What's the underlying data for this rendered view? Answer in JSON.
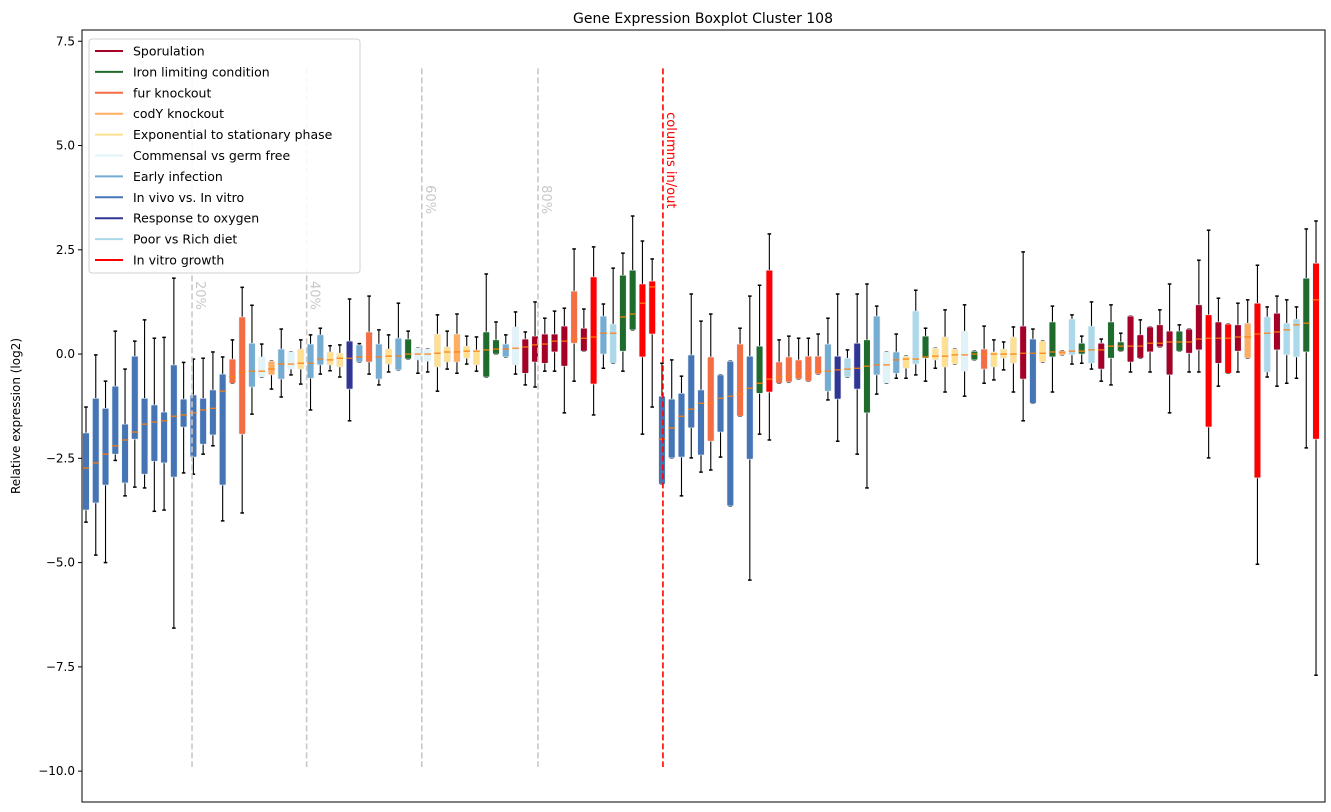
{
  "chart_data": {
    "type": "boxplot",
    "title": "Gene Expression Boxplot Cluster 108",
    "xlabel": "",
    "ylabel": "Relative expression (log2)",
    "ylim": [
      -10.74,
      7.77
    ],
    "xlim": [
      0.59,
      127.92
    ],
    "grid": false,
    "yticks": [
      {
        "value": 7.5,
        "label": "7.5"
      },
      {
        "value": 5.0,
        "label": "5.0"
      },
      {
        "value": 2.5,
        "label": "2.5"
      },
      {
        "value": 0.0,
        "label": "0.0"
      },
      {
        "value": -2.5,
        "label": "−2.5"
      },
      {
        "value": -5.0,
        "label": "−5.0"
      },
      {
        "value": -7.5,
        "label": "−7.5"
      },
      {
        "value": -10.0,
        "label": "−10.0"
      }
    ],
    "legend_position": "top-left",
    "median_color": "#ff7f0e",
    "categories": {
      "S": {
        "name": "Sporulation",
        "color": "#a50026"
      },
      "I": {
        "name": "Iron limiting condition",
        "color": "#1f6b2c"
      },
      "F": {
        "name": "fur knockout",
        "color": "#f46d43"
      },
      "C": {
        "name": "codY knockout",
        "color": "#fdae61"
      },
      "E": {
        "name": "Exponential to stationary phase",
        "color": "#fee090"
      },
      "M": {
        "name": "Commensal vs germ free",
        "color": "#e0f3f8"
      },
      "A": {
        "name": "Early infection",
        "color": "#74add1"
      },
      "V": {
        "name": "In vivo vs. In vitro",
        "color": "#4575b4"
      },
      "O": {
        "name": "Response to oxygen",
        "color": "#313695"
      },
      "P": {
        "name": "Poor vs Rich diet",
        "color": "#abd9e9"
      },
      "R": {
        "name": "In vitro growth",
        "color": "#ff0000"
      }
    },
    "legend_order": [
      "S",
      "I",
      "F",
      "C",
      "E",
      "M",
      "A",
      "V",
      "O",
      "P",
      "R"
    ],
    "box_fields": [
      "whisker_low",
      "q1",
      "median",
      "q3",
      "whisker_high",
      "category"
    ],
    "boxes": [
      [
        -4.03,
        -3.74,
        -2.73,
        -1.89,
        -1.27,
        "V"
      ],
      [
        -4.82,
        -3.57,
        -2.61,
        -1.06,
        -0.02,
        "V"
      ],
      [
        -5.0,
        -3.14,
        -2.4,
        -1.3,
        -0.65,
        "V"
      ],
      [
        -2.55,
        -2.4,
        -2.2,
        -0.77,
        0.55,
        "V"
      ],
      [
        -3.4,
        -3.09,
        -2.06,
        -1.68,
        -0.36,
        "V"
      ],
      [
        -3.19,
        -2.04,
        -1.87,
        -0.05,
        0.31,
        "V"
      ],
      [
        -3.21,
        -2.88,
        -1.68,
        -1.06,
        0.82,
        "V"
      ],
      [
        -3.77,
        -2.57,
        -1.63,
        -1.22,
        0.38,
        "V"
      ],
      [
        -3.74,
        -2.61,
        -1.6,
        -1.39,
        0.4,
        "V"
      ],
      [
        -6.57,
        -2.95,
        -1.49,
        -0.26,
        1.82,
        "V"
      ],
      [
        -2.85,
        -1.75,
        -1.46,
        -1.08,
        -0.2,
        "V"
      ],
      [
        -2.88,
        -2.47,
        -1.41,
        -0.98,
        -0.12,
        "V"
      ],
      [
        -2.4,
        -2.16,
        -1.34,
        -1.06,
        -0.1,
        "V"
      ],
      [
        -2.2,
        -1.94,
        -1.3,
        -0.86,
        0.05,
        "V"
      ],
      [
        -4.0,
        -3.14,
        -0.89,
        -0.48,
        -0.07,
        "V"
      ],
      [
        -0.7,
        -0.7,
        -0.55,
        -0.12,
        0.34,
        "F"
      ],
      [
        -3.81,
        -1.92,
        -0.43,
        0.89,
        1.6,
        "F"
      ],
      [
        -1.44,
        -0.79,
        -0.41,
        0.26,
        1.17,
        "A"
      ],
      [
        -0.55,
        -0.55,
        -0.41,
        -0.07,
        0.24,
        "M"
      ],
      [
        -0.84,
        -0.5,
        -0.36,
        -0.17,
        -0.17,
        "C"
      ],
      [
        -1.03,
        -0.6,
        -0.24,
        0.12,
        0.6,
        "A"
      ],
      [
        -0.5,
        -0.36,
        -0.24,
        0.05,
        0.05,
        "M"
      ],
      [
        -0.72,
        -0.36,
        -0.22,
        0.12,
        0.34,
        "E"
      ],
      [
        -1.34,
        -0.58,
        -0.22,
        0.24,
        0.46,
        "A"
      ],
      [
        -0.48,
        -0.26,
        -0.12,
        0.46,
        0.62,
        "A"
      ],
      [
        -0.4,
        -0.26,
        -0.14,
        0.05,
        0.2,
        "E"
      ],
      [
        -0.55,
        -0.31,
        -0.1,
        0.02,
        0.22,
        "E"
      ],
      [
        -1.6,
        -0.84,
        -0.1,
        0.31,
        1.32,
        "O"
      ],
      [
        -0.19,
        -0.19,
        -0.07,
        0.22,
        0.25,
        "A"
      ],
      [
        -0.48,
        -0.19,
        -0.07,
        0.53,
        1.39,
        "F"
      ],
      [
        -0.74,
        -0.6,
        -0.07,
        0.24,
        0.58,
        "A"
      ],
      [
        -0.43,
        -0.24,
        -0.05,
        0.12,
        0.46,
        "E"
      ],
      [
        -0.38,
        -0.38,
        -0.05,
        0.38,
        1.22,
        "A"
      ],
      [
        -0.12,
        -0.12,
        0.0,
        0.36,
        0.55,
        "I"
      ],
      [
        -0.46,
        -0.14,
        0.0,
        0.14,
        0.14,
        "M"
      ],
      [
        -0.43,
        -0.17,
        0.0,
        0.12,
        0.12,
        "M"
      ],
      [
        -0.89,
        -0.31,
        0.02,
        0.48,
        0.94,
        "E"
      ],
      [
        -0.36,
        -0.19,
        0.05,
        0.17,
        0.55,
        "E"
      ],
      [
        -0.46,
        -0.19,
        0.05,
        0.48,
        0.96,
        "C"
      ],
      [
        -0.24,
        -0.1,
        0.07,
        0.19,
        0.43,
        "E"
      ],
      [
        -0.41,
        -0.26,
        0.07,
        0.1,
        0.41,
        "E"
      ],
      [
        -0.55,
        -0.55,
        0.1,
        0.53,
        1.92,
        "I"
      ],
      [
        0.0,
        0.0,
        0.12,
        0.34,
        0.77,
        "I"
      ],
      [
        -0.07,
        -0.07,
        0.12,
        0.24,
        0.46,
        "A"
      ],
      [
        -0.48,
        -0.26,
        0.14,
        0.65,
        1.01,
        "M"
      ],
      [
        -0.74,
        -0.46,
        0.17,
        0.36,
        0.53,
        "S"
      ],
      [
        -0.79,
        -0.19,
        0.22,
        0.43,
        1.25,
        "S"
      ],
      [
        -0.41,
        -0.22,
        0.24,
        0.48,
        0.86,
        "S"
      ],
      [
        -0.41,
        0.05,
        0.31,
        0.48,
        1.03,
        "S"
      ],
      [
        -1.41,
        -0.29,
        0.31,
        0.67,
        1.1,
        "S"
      ],
      [
        -0.65,
        0.26,
        0.36,
        1.51,
        2.52,
        "F"
      ],
      [
        0.07,
        0.07,
        0.38,
        0.62,
        1.08,
        "S"
      ],
      [
        -1.46,
        -0.72,
        0.41,
        1.85,
        2.57,
        "R"
      ],
      [
        -0.34,
        0.0,
        0.5,
        0.91,
        1.2,
        "A"
      ],
      [
        -0.22,
        -0.22,
        0.5,
        0.72,
        2.06,
        "P"
      ],
      [
        -0.41,
        0.07,
        0.89,
        1.89,
        2.42,
        "I"
      ],
      [
        0.58,
        0.58,
        0.96,
        2.01,
        3.31,
        "I"
      ],
      [
        -1.92,
        -0.07,
        1.22,
        1.68,
        2.71,
        "R"
      ],
      [
        -1.27,
        0.48,
        1.61,
        1.75,
        2.28,
        "R"
      ],
      [
        -3.12,
        -3.12,
        -2.04,
        -1.01,
        -0.22,
        "V"
      ],
      [
        -2.49,
        -2.49,
        -1.77,
        -1.08,
        -0.14,
        "V"
      ],
      [
        -3.4,
        -2.47,
        -1.49,
        -0.94,
        -0.53,
        "V"
      ],
      [
        -2.49,
        -1.77,
        -1.32,
        -0.02,
        1.44,
        "V"
      ],
      [
        -2.83,
        -2.42,
        -1.18,
        -0.86,
        0.79,
        "V"
      ],
      [
        -2.78,
        -2.09,
        -1.18,
        -0.07,
        0.96,
        "F"
      ],
      [
        -2.47,
        -1.87,
        -1.06,
        -0.5,
        -0.5,
        "V"
      ],
      [
        -3.64,
        -3.64,
        -1.01,
        -0.17,
        -0.17,
        "V"
      ],
      [
        -1.49,
        -1.49,
        -0.96,
        0.24,
        0.62,
        "F"
      ],
      [
        -5.42,
        -2.52,
        -0.82,
        -0.05,
        1.39,
        "V"
      ],
      [
        -1.92,
        -0.94,
        -0.7,
        0.19,
        1.65,
        "I"
      ],
      [
        -2.06,
        -0.91,
        -0.6,
        2.01,
        2.88,
        "R"
      ],
      [
        -0.7,
        -0.7,
        -0.55,
        -0.19,
        0.34,
        "F"
      ],
      [
        -0.67,
        -0.67,
        -0.53,
        -0.07,
        0.43,
        "F"
      ],
      [
        -0.6,
        -0.6,
        -0.46,
        -0.14,
        0.38,
        "F"
      ],
      [
        -0.65,
        -0.65,
        -0.46,
        -0.05,
        0.38,
        "F"
      ],
      [
        -0.48,
        -0.48,
        -0.41,
        -0.05,
        0.48,
        "F"
      ],
      [
        -1.1,
        -0.89,
        -0.41,
        0.24,
        0.86,
        "A"
      ],
      [
        -2.09,
        -1.08,
        -0.38,
        -0.05,
        1.44,
        "O"
      ],
      [
        -0.55,
        -0.55,
        -0.36,
        -0.1,
        0.1,
        "P"
      ],
      [
        -2.4,
        -0.84,
        -0.34,
        0.26,
        1.44,
        "O"
      ],
      [
        -3.21,
        -1.41,
        -0.29,
        0.34,
        1.68,
        "I"
      ],
      [
        -0.96,
        -0.5,
        -0.26,
        0.91,
        1.15,
        "A"
      ],
      [
        -0.7,
        -0.7,
        -0.26,
        0.05,
        0.05,
        "M"
      ],
      [
        -0.58,
        -0.46,
        -0.14,
        0.05,
        0.48,
        "A"
      ],
      [
        -0.58,
        -0.34,
        -0.12,
        -0.05,
        -0.05,
        "E"
      ],
      [
        -0.5,
        -0.24,
        -0.12,
        1.03,
        1.53,
        "P"
      ],
      [
        -0.65,
        -0.1,
        -0.07,
        0.43,
        0.62,
        "I"
      ],
      [
        -0.34,
        -0.14,
        -0.05,
        0.14,
        0.14,
        "E"
      ],
      [
        -0.91,
        -0.31,
        -0.05,
        0.41,
        1.06,
        "E"
      ],
      [
        -0.24,
        -0.24,
        -0.02,
        0.12,
        0.12,
        "E"
      ],
      [
        -1.01,
        -0.41,
        -0.02,
        0.55,
        1.18,
        "M"
      ],
      [
        -0.14,
        -0.14,
        0.0,
        0.07,
        0.07,
        "I"
      ],
      [
        -0.7,
        -0.36,
        0.0,
        0.12,
        0.67,
        "F"
      ],
      [
        -0.62,
        -0.31,
        0.0,
        0.05,
        0.34,
        "E"
      ],
      [
        -0.38,
        -0.1,
        0.0,
        0.12,
        0.29,
        "E"
      ],
      [
        -0.91,
        -0.22,
        0.0,
        0.41,
        0.65,
        "E"
      ],
      [
        -1.6,
        -0.6,
        0.02,
        0.67,
        2.45,
        "S"
      ],
      [
        -1.18,
        -1.18,
        0.02,
        0.36,
        0.6,
        "V"
      ],
      [
        -0.19,
        -0.19,
        0.02,
        0.31,
        0.31,
        "E"
      ],
      [
        -0.91,
        -0.07,
        0.05,
        0.77,
        1.15,
        "I"
      ],
      [
        -0.02,
        -0.02,
        0.05,
        0.07,
        0.07,
        "C"
      ],
      [
        -0.24,
        -0.02,
        0.07,
        0.84,
        0.94,
        "P"
      ],
      [
        -0.22,
        0.0,
        0.07,
        0.26,
        0.43,
        "I"
      ],
      [
        -0.36,
        -0.22,
        0.1,
        0.67,
        1.25,
        "P"
      ],
      [
        -0.65,
        -0.36,
        0.1,
        0.26,
        0.36,
        "S"
      ],
      [
        -0.74,
        -0.1,
        0.19,
        0.77,
        1.18,
        "I"
      ],
      [
        0.07,
        0.07,
        0.19,
        0.29,
        0.5,
        "I"
      ],
      [
        -0.43,
        -0.19,
        0.19,
        0.91,
        0.91,
        "S"
      ],
      [
        -0.1,
        -0.1,
        0.19,
        0.46,
        0.82,
        "S"
      ],
      [
        -0.43,
        0.05,
        0.26,
        0.65,
        0.65,
        "S"
      ],
      [
        0.17,
        0.17,
        0.26,
        0.7,
        1.06,
        "S"
      ],
      [
        -1.41,
        -0.5,
        0.29,
        0.55,
        1.68,
        "S"
      ],
      [
        0.07,
        0.07,
        0.29,
        0.55,
        0.7,
        "I"
      ],
      [
        -0.43,
        0.02,
        0.29,
        0.6,
        0.6,
        "S"
      ],
      [
        -0.43,
        0.1,
        0.36,
        1.18,
        2.25,
        "S"
      ],
      [
        -2.49,
        -1.75,
        0.38,
        0.94,
        2.97,
        "R"
      ],
      [
        -0.77,
        -0.22,
        0.38,
        0.77,
        1.34,
        "S"
      ],
      [
        -0.46,
        -0.46,
        0.38,
        0.72,
        0.72,
        "R"
      ],
      [
        -0.43,
        0.07,
        0.41,
        0.7,
        1.22,
        "S"
      ],
      [
        -0.1,
        -0.1,
        0.41,
        0.74,
        1.3,
        "C"
      ],
      [
        -5.04,
        -2.97,
        0.48,
        1.22,
        2.13,
        "R"
      ],
      [
        -0.55,
        -0.43,
        0.5,
        0.89,
        1.13,
        "P"
      ],
      [
        -0.77,
        0.1,
        0.53,
        0.98,
        1.39,
        "S"
      ],
      [
        -0.7,
        -0.02,
        0.58,
        0.74,
        1.3,
        "P"
      ],
      [
        -0.58,
        -0.07,
        0.7,
        0.84,
        1.13,
        "P"
      ],
      [
        -2.25,
        0.05,
        0.74,
        1.82,
        3.0,
        "I"
      ],
      [
        -7.7,
        -2.04,
        1.3,
        2.18,
        3.19,
        "R"
      ]
    ],
    "reference_lines": [
      {
        "x": 11.86,
        "label": "20%",
        "color": "#c8c8c8",
        "label_y": 4.05
      },
      {
        "x": 23.6,
        "label": "40%",
        "color": "#c8c8c8",
        "label_y": 4.05
      },
      {
        "x": 35.4,
        "label": "60%",
        "color": "#c8c8c8",
        "label_y": 4.05
      },
      {
        "x": 47.3,
        "label": "80%",
        "color": "#c8c8c8",
        "label_y": 4.05
      },
      {
        "x": 60.1,
        "label": "columns in/out",
        "color": "#ff0000",
        "label_y": 5.8
      }
    ],
    "reference_line_range": [
      -9.9,
      6.85
    ]
  }
}
